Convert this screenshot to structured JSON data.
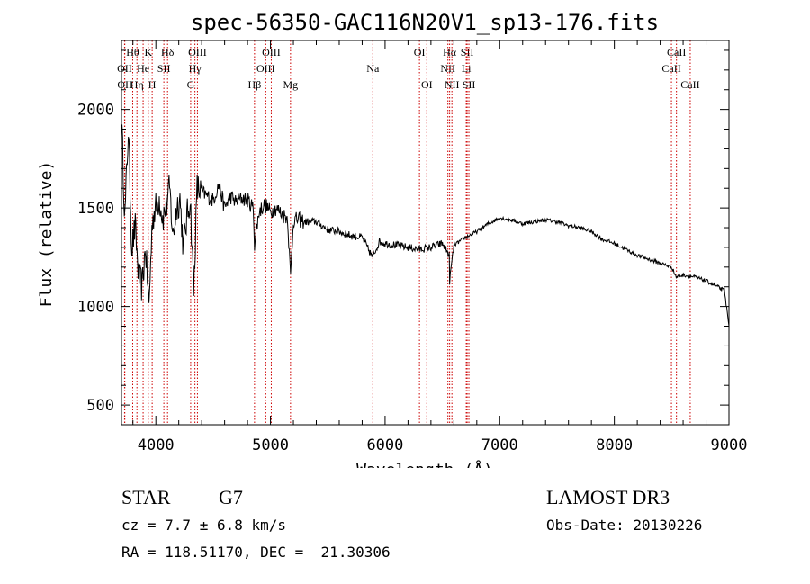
{
  "chart_data": {
    "type": "line",
    "title": "spec-56350-GAC116N20V1_sp13-176.fits",
    "xlabel": "Wavelength (Å)",
    "ylabel": "Flux (relative)",
    "xlim": [
      3700,
      9000
    ],
    "ylim": [
      400,
      2350
    ],
    "xticks": [
      4000,
      5000,
      6000,
      7000,
      8000,
      9000
    ],
    "yticks": [
      500,
      1000,
      1500,
      2000
    ],
    "grid": false,
    "series": [
      {
        "name": "spectrum",
        "x": [
          3700,
          3730,
          3760,
          3790,
          3820,
          3850,
          3880,
          3910,
          3940,
          3970,
          4000,
          4030,
          4060,
          4090,
          4120,
          4150,
          4180,
          4210,
          4240,
          4270,
          4300,
          4330,
          4360,
          4400,
          4450,
          4500,
          4550,
          4600,
          4650,
          4700,
          4750,
          4800,
          4850,
          4861,
          4900,
          4950,
          5000,
          5050,
          5100,
          5150,
          5175,
          5200,
          5250,
          5300,
          5400,
          5500,
          5600,
          5700,
          5800,
          5890,
          5950,
          6000,
          6100,
          6200,
          6300,
          6400,
          6500,
          6560,
          6563,
          6600,
          6700,
          6800,
          6900,
          7000,
          7100,
          7200,
          7300,
          7400,
          7500,
          7600,
          7700,
          7800,
          7900,
          8000,
          8100,
          8200,
          8300,
          8400,
          8500,
          8540,
          8600,
          8700,
          8800,
          8900,
          8960,
          9000
        ],
        "values": [
          1950,
          1450,
          1900,
          1300,
          1400,
          1150,
          1100,
          1300,
          1000,
          1450,
          1500,
          1550,
          1450,
          1500,
          1600,
          1350,
          1500,
          1550,
          1300,
          1450,
          1550,
          1080,
          1600,
          1580,
          1560,
          1540,
          1620,
          1500,
          1560,
          1530,
          1550,
          1540,
          1500,
          1320,
          1480,
          1520,
          1480,
          1500,
          1470,
          1450,
          1150,
          1440,
          1440,
          1430,
          1430,
          1390,
          1380,
          1360,
          1350,
          1250,
          1330,
          1320,
          1310,
          1300,
          1290,
          1300,
          1320,
          1260,
          1130,
          1310,
          1350,
          1380,
          1420,
          1450,
          1440,
          1420,
          1430,
          1440,
          1430,
          1410,
          1400,
          1380,
          1340,
          1320,
          1290,
          1260,
          1240,
          1220,
          1200,
          1150,
          1160,
          1150,
          1130,
          1100,
          1080,
          900
        ]
      }
    ],
    "lines": [
      {
        "label": "Hθ",
        "x": 3798,
        "row": 1
      },
      {
        "label": "OII",
        "x": 3727,
        "row": 2
      },
      {
        "label": "OII",
        "x": 3729,
        "row": 3
      },
      {
        "label": "He",
        "x": 3889,
        "row": 2
      },
      {
        "label": "Hη",
        "x": 3835,
        "row": 3
      },
      {
        "label": "K",
        "x": 3934,
        "row": 1
      },
      {
        "label": "H",
        "x": 3968,
        "row": 3
      },
      {
        "label": "SII",
        "x": 4070,
        "row": 2
      },
      {
        "label": "Hδ",
        "x": 4102,
        "row": 1
      },
      {
        "label": "Hγ",
        "x": 4341,
        "row": 2
      },
      {
        "label": "G",
        "x": 4304,
        "row": 3
      },
      {
        "label": "OIII",
        "x": 4363,
        "row": 1
      },
      {
        "label": "Hβ",
        "x": 4861,
        "row": 3
      },
      {
        "label": "OIII",
        "x": 4959,
        "row": 2
      },
      {
        "label": "OIII",
        "x": 5007,
        "row": 1
      },
      {
        "label": "Mg",
        "x": 5175,
        "row": 3
      },
      {
        "label": "Na",
        "x": 5893,
        "row": 2
      },
      {
        "label": "OI",
        "x": 6300,
        "row": 1
      },
      {
        "label": "OI",
        "x": 6364,
        "row": 3
      },
      {
        "label": "NII",
        "x": 6548,
        "row": 2
      },
      {
        "label": "Hα",
        "x": 6563,
        "row": 1
      },
      {
        "label": "NII",
        "x": 6583,
        "row": 3
      },
      {
        "label": "Li",
        "x": 6708,
        "row": 2
      },
      {
        "label": "SII",
        "x": 6716,
        "row": 1
      },
      {
        "label": "SII",
        "x": 6731,
        "row": 3
      },
      {
        "label": "CaII",
        "x": 8498,
        "row": 2
      },
      {
        "label": "CaII",
        "x": 8542,
        "row": 1
      },
      {
        "label": "CaII",
        "x": 8662,
        "row": 3
      }
    ],
    "line_color": "#cc0000"
  },
  "info": {
    "class_label": "STAR",
    "subclass": "G7",
    "redshift": "cz = 7.7 ± 6.8 km/s",
    "coords": "RA = 118.51170, DEC =  21.30306",
    "survey": "LAMOST DR3",
    "obs_date": "Obs-Date: 20130226"
  }
}
